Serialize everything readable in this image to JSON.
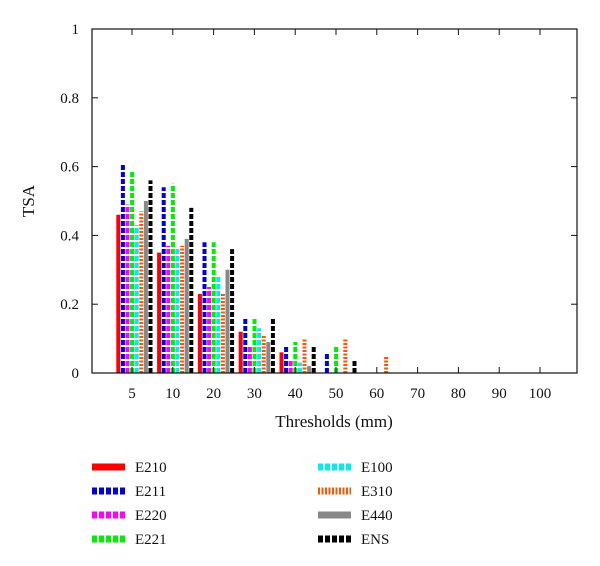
{
  "chart_data": {
    "type": "bar",
    "title": "",
    "xlabel": "Thresholds (mm)",
    "ylabel": "TSA",
    "ylim": [
      0,
      1
    ],
    "yticks": [
      "0",
      "0.2",
      "0.4",
      "0.6",
      "0.8",
      "1"
    ],
    "grid": false,
    "legend_position": "bottom",
    "categories": [
      "5",
      "10",
      "20",
      "30",
      "40",
      "50",
      "60",
      "70",
      "80",
      "90",
      "100"
    ],
    "series": [
      {
        "name": "E210",
        "color": "#ff0000",
        "style": "solid",
        "values": [
          0.46,
          0.35,
          0.23,
          0.12,
          0.06,
          0,
          0,
          0,
          0,
          0,
          0
        ]
      },
      {
        "name": "E211",
        "color": "#0000dd",
        "style": "dashed",
        "values": [
          0.61,
          0.54,
          0.38,
          0.16,
          0.08,
          0.06,
          0,
          0,
          0,
          0,
          0
        ]
      },
      {
        "name": "E220",
        "color": "#ff00ff",
        "style": "dashed",
        "values": [
          0.49,
          0.37,
          0.25,
          0.08,
          0.04,
          0,
          0,
          0,
          0,
          0,
          0
        ]
      },
      {
        "name": "E221",
        "color": "#00ee00",
        "style": "dashed",
        "values": [
          0.59,
          0.55,
          0.38,
          0.16,
          0.09,
          0.08,
          0,
          0,
          0,
          0,
          0
        ]
      },
      {
        "name": "E100",
        "color": "#00eeee",
        "style": "dashed",
        "values": [
          0.43,
          0.36,
          0.28,
          0.13,
          0.03,
          0,
          0,
          0,
          0,
          0,
          0
        ]
      },
      {
        "name": "E310",
        "color": "#ff5500",
        "style": "dotted",
        "values": [
          0.47,
          0.37,
          0.23,
          0.11,
          0.1,
          0.1,
          0.05,
          0,
          0,
          0,
          0
        ]
      },
      {
        "name": "E440",
        "color": "#888888",
        "style": "solid",
        "values": [
          0.5,
          0.39,
          0.3,
          0.09,
          0.02,
          0,
          0,
          0,
          0,
          0,
          0
        ]
      },
      {
        "name": "ENS",
        "color": "#000000",
        "style": "dashed",
        "values": [
          0.56,
          0.48,
          0.36,
          0.16,
          0.08,
          0.04,
          0,
          0,
          0,
          0,
          0
        ]
      }
    ]
  }
}
